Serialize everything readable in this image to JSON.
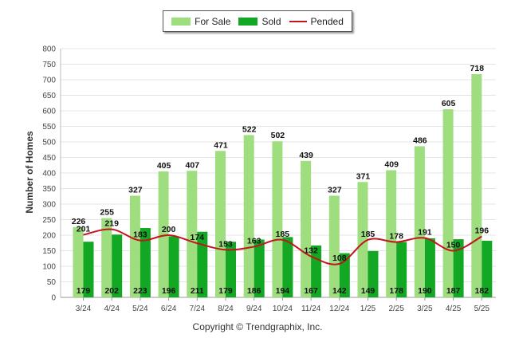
{
  "legend": {
    "for_sale": "For Sale",
    "sold": "Sold",
    "pended": "Pended"
  },
  "copyright": "Copyright © Trendgraphix, Inc.",
  "colors": {
    "for_sale": "#9ede7f",
    "sold": "#12a824",
    "pended": "#c4141c",
    "grid": "#e4e4e4"
  },
  "chart_data": {
    "type": "bar",
    "ylabel": "Number of Homes",
    "xlabel": "",
    "ylim": [
      0,
      800
    ],
    "yticks": [
      0,
      50,
      100,
      150,
      200,
      250,
      300,
      350,
      400,
      450,
      500,
      550,
      600,
      650,
      700,
      750,
      800
    ],
    "grid": true,
    "legend_position": "top-center",
    "categories": [
      "3/24",
      "4/24",
      "5/24",
      "6/24",
      "7/24",
      "8/24",
      "9/24",
      "10/24",
      "11/24",
      "12/24",
      "1/25",
      "2/25",
      "3/25",
      "4/25",
      "5/25"
    ],
    "series": [
      {
        "name": "For Sale",
        "kind": "bar",
        "values": [
          226,
          255,
          327,
          405,
          407,
          471,
          522,
          502,
          439,
          327,
          371,
          409,
          486,
          605,
          718
        ]
      },
      {
        "name": "Sold",
        "kind": "bar",
        "values": [
          179,
          202,
          223,
          196,
          211,
          179,
          186,
          194,
          167,
          142,
          149,
          178,
          190,
          187,
          182
        ]
      },
      {
        "name": "Pended",
        "kind": "line",
        "values": [
          201,
          219,
          183,
          200,
          174,
          153,
          163,
          185,
          132,
          108,
          185,
          178,
          191,
          150,
          196
        ]
      }
    ]
  }
}
